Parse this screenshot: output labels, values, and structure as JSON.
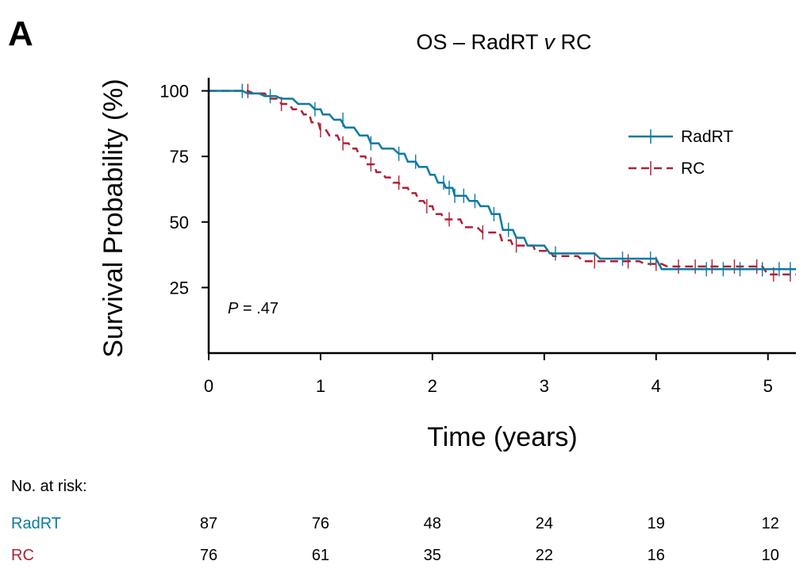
{
  "panel_letter": "A",
  "chart_data": {
    "type": "line",
    "title": "OS – RadRT v RC",
    "title_main": "OS – RadRT ",
    "title_italic": "v",
    "title_tail": " RC",
    "xlabel": "Time (years)",
    "ylabel": "Survival Probability (%)",
    "xlim": [
      0,
      5.25
    ],
    "ylim": [
      0,
      105
    ],
    "x_ticks": [
      0,
      1,
      2,
      3,
      4,
      5
    ],
    "x_tick_labels": [
      "0",
      "1",
      "2",
      "3",
      "4",
      "5"
    ],
    "y_ticks": [
      25,
      50,
      75,
      100
    ],
    "y_tick_labels": [
      "25",
      "50",
      "75",
      "100"
    ],
    "legend_position": "top-right",
    "annotation": {
      "italic": "P",
      "text": " = .47"
    },
    "grid": false,
    "series": [
      {
        "name": "RadRT",
        "color": "#0b7aa1",
        "style": "solid",
        "points": [
          [
            0,
            100
          ],
          [
            0.3,
            100
          ],
          [
            0.35,
            99
          ],
          [
            0.45,
            99
          ],
          [
            0.5,
            98
          ],
          [
            0.6,
            98
          ],
          [
            0.65,
            97
          ],
          [
            0.75,
            97
          ],
          [
            0.8,
            95
          ],
          [
            0.9,
            95
          ],
          [
            0.95,
            93
          ],
          [
            1.0,
            93
          ],
          [
            1.02,
            91
          ],
          [
            1.08,
            91
          ],
          [
            1.12,
            89
          ],
          [
            1.18,
            89
          ],
          [
            1.22,
            86
          ],
          [
            1.3,
            86
          ],
          [
            1.35,
            83
          ],
          [
            1.42,
            83
          ],
          [
            1.45,
            80
          ],
          [
            1.52,
            80
          ],
          [
            1.55,
            78
          ],
          [
            1.65,
            78
          ],
          [
            1.7,
            76
          ],
          [
            1.75,
            76
          ],
          [
            1.78,
            73
          ],
          [
            1.85,
            73
          ],
          [
            1.88,
            71
          ],
          [
            1.95,
            71
          ],
          [
            1.98,
            68
          ],
          [
            2.02,
            68
          ],
          [
            2.05,
            65
          ],
          [
            2.1,
            65
          ],
          [
            2.12,
            63
          ],
          [
            2.18,
            63
          ],
          [
            2.2,
            60
          ],
          [
            2.3,
            60
          ],
          [
            2.33,
            58
          ],
          [
            2.4,
            58
          ],
          [
            2.43,
            56
          ],
          [
            2.5,
            56
          ],
          [
            2.53,
            53
          ],
          [
            2.6,
            53
          ],
          [
            2.63,
            47
          ],
          [
            2.72,
            47
          ],
          [
            2.75,
            44
          ],
          [
            2.82,
            44
          ],
          [
            2.85,
            41
          ],
          [
            3.0,
            41
          ],
          [
            3.05,
            38
          ],
          [
            3.45,
            38
          ],
          [
            3.5,
            36
          ],
          [
            4.0,
            36
          ],
          [
            4.05,
            32
          ],
          [
            5.25,
            32
          ]
        ],
        "censor_x": [
          0.3,
          0.55,
          0.95,
          1.2,
          1.45,
          1.7,
          1.85,
          2.1,
          2.15,
          2.2,
          2.28,
          2.38,
          2.55,
          2.68,
          3.1,
          3.7,
          3.95,
          4.45,
          4.6,
          4.75,
          4.95,
          5.1,
          5.2
        ]
      },
      {
        "name": "RC",
        "color": "#b02035",
        "style": "dashed",
        "points": [
          [
            0,
            100
          ],
          [
            0.35,
            100
          ],
          [
            0.4,
            99
          ],
          [
            0.5,
            99
          ],
          [
            0.55,
            97
          ],
          [
            0.62,
            97
          ],
          [
            0.65,
            95
          ],
          [
            0.72,
            95
          ],
          [
            0.75,
            93
          ],
          [
            0.82,
            93
          ],
          [
            0.85,
            91
          ],
          [
            0.9,
            91
          ],
          [
            0.92,
            88
          ],
          [
            0.98,
            88
          ],
          [
            1.0,
            85
          ],
          [
            1.05,
            85
          ],
          [
            1.08,
            83
          ],
          [
            1.15,
            83
          ],
          [
            1.18,
            80
          ],
          [
            1.25,
            80
          ],
          [
            1.28,
            78
          ],
          [
            1.32,
            78
          ],
          [
            1.35,
            75
          ],
          [
            1.4,
            75
          ],
          [
            1.42,
            72
          ],
          [
            1.48,
            72
          ],
          [
            1.5,
            69
          ],
          [
            1.55,
            69
          ],
          [
            1.58,
            67
          ],
          [
            1.62,
            67
          ],
          [
            1.65,
            65
          ],
          [
            1.7,
            65
          ],
          [
            1.72,
            63
          ],
          [
            1.78,
            63
          ],
          [
            1.8,
            61
          ],
          [
            1.85,
            61
          ],
          [
            1.88,
            58
          ],
          [
            1.92,
            58
          ],
          [
            1.95,
            56
          ],
          [
            2.0,
            56
          ],
          [
            2.02,
            53
          ],
          [
            2.08,
            53
          ],
          [
            2.1,
            51
          ],
          [
            2.25,
            51
          ],
          [
            2.28,
            48
          ],
          [
            2.4,
            48
          ],
          [
            2.45,
            46
          ],
          [
            2.6,
            46
          ],
          [
            2.62,
            43
          ],
          [
            2.7,
            43
          ],
          [
            2.72,
            41
          ],
          [
            2.9,
            41
          ],
          [
            2.92,
            39
          ],
          [
            3.05,
            39
          ],
          [
            3.08,
            37
          ],
          [
            3.3,
            37
          ],
          [
            3.35,
            35
          ],
          [
            3.85,
            35
          ],
          [
            3.9,
            34
          ],
          [
            4.05,
            34
          ],
          [
            4.1,
            33
          ],
          [
            4.95,
            33
          ],
          [
            5.0,
            30
          ],
          [
            5.25,
            30
          ]
        ],
        "censor_x": [
          0.35,
          0.65,
          1.0,
          1.2,
          1.45,
          1.7,
          1.95,
          2.15,
          2.45,
          2.75,
          3.45,
          3.75,
          4.0,
          4.2,
          4.35,
          4.5,
          4.7,
          4.9,
          5.05,
          5.2
        ]
      }
    ]
  },
  "risk_table": {
    "header": "No. at risk:",
    "rows": [
      {
        "name": "RadRT",
        "color": "#0b7aa1",
        "values": [
          "87",
          "76",
          "48",
          "24",
          "19",
          "12"
        ]
      },
      {
        "name": "RC",
        "color": "#b02035",
        "values": [
          "76",
          "61",
          "35",
          "22",
          "16",
          "10"
        ]
      }
    ]
  }
}
